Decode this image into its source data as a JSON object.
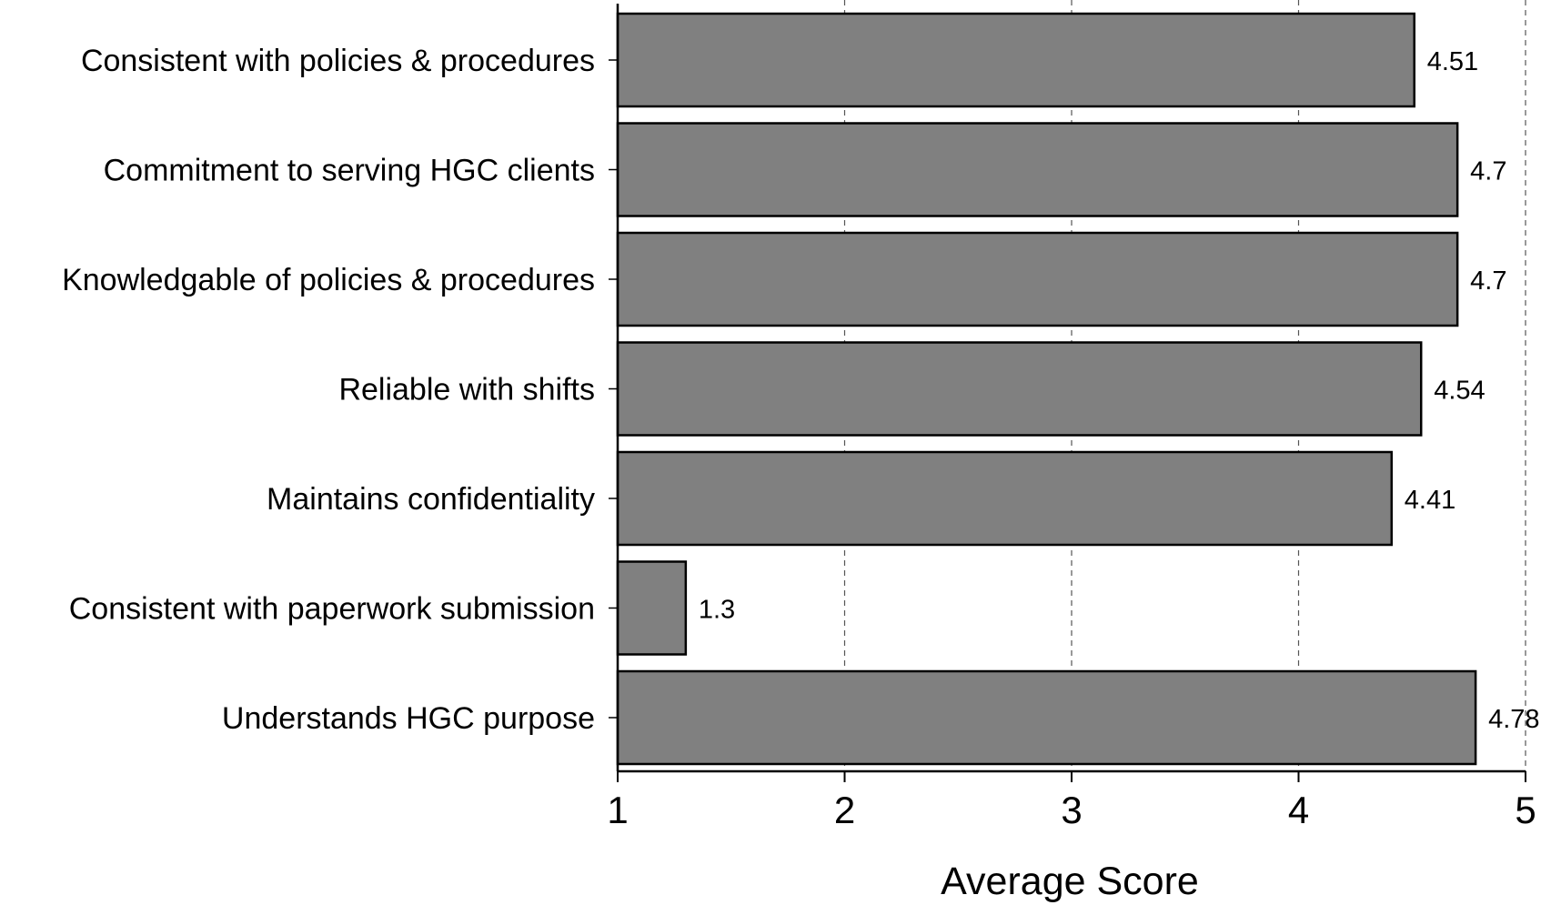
{
  "chart_data": {
    "type": "bar",
    "orientation": "horizontal",
    "categories": [
      "Consistent with policies & procedures",
      "Commitment to serving HGC clients",
      "Knowledgable of policies & procedures",
      "Reliable with shifts",
      "Maintains confidentiality",
      "Consistent with paperwork submission",
      "Understands HGC purpose"
    ],
    "values": [
      4.51,
      4.7,
      4.7,
      4.54,
      4.41,
      1.3,
      4.78
    ],
    "value_labels": [
      "4.51",
      "4.7",
      "4.7",
      "4.54",
      "4.41",
      "1.3",
      "4.78"
    ],
    "title": "",
    "xlabel": "Average Score",
    "ylabel": "",
    "xlim": [
      1,
      5
    ],
    "xticks": [
      1,
      2,
      3,
      4,
      5
    ],
    "xtick_labels": [
      "1",
      "2",
      "3",
      "4",
      "5"
    ],
    "grid": "vertical dashed",
    "legend": "none",
    "colors": {
      "bar_fill": "#808080",
      "bar_stroke": "#000000",
      "grid": "#555555",
      "axis": "#000000"
    }
  }
}
